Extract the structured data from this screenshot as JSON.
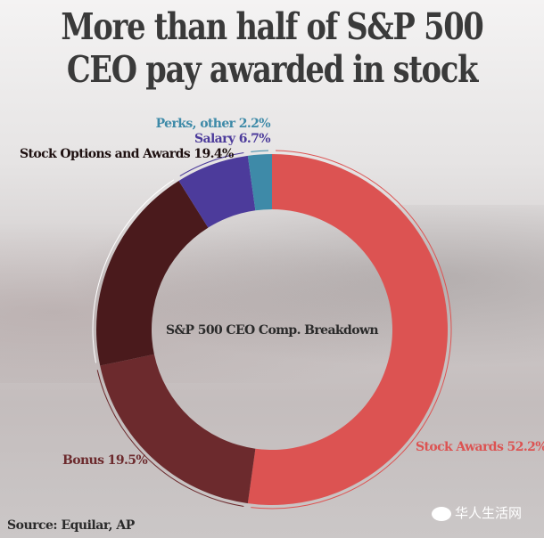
{
  "title": "More than half of S&P 500 CEO pay awarded in stock",
  "title_lines": [
    "More than half of S&P 500",
    "CEO pay awarded in stock"
  ],
  "source": "Source: Equilar, AP",
  "watermark": "华人生活网",
  "chart_data": {
    "type": "pie",
    "donut": true,
    "center_label": "S&P 500 CEO Comp. Breakdown",
    "start": "top, clockwise",
    "slices": [
      {
        "name": "Stock Awards",
        "value": 52.2,
        "label": "Stock Awards 52.2%",
        "color": "#dc5352"
      },
      {
        "name": "Bonus",
        "value": 19.5,
        "label": "Bonus 19.5%",
        "color": "#6c2a2d"
      },
      {
        "name": "Stock Options and Awards",
        "value": 19.4,
        "label": "Stock Options and Awards 19.4%",
        "color": "#4a1a1c"
      },
      {
        "name": "Salary",
        "value": 6.7,
        "label": "Salary 6.7%",
        "color": "#4c3b9b"
      },
      {
        "name": "Perks, other",
        "value": 2.2,
        "label": "Perks, other 2.2%",
        "color": "#3e8aa8"
      }
    ]
  }
}
